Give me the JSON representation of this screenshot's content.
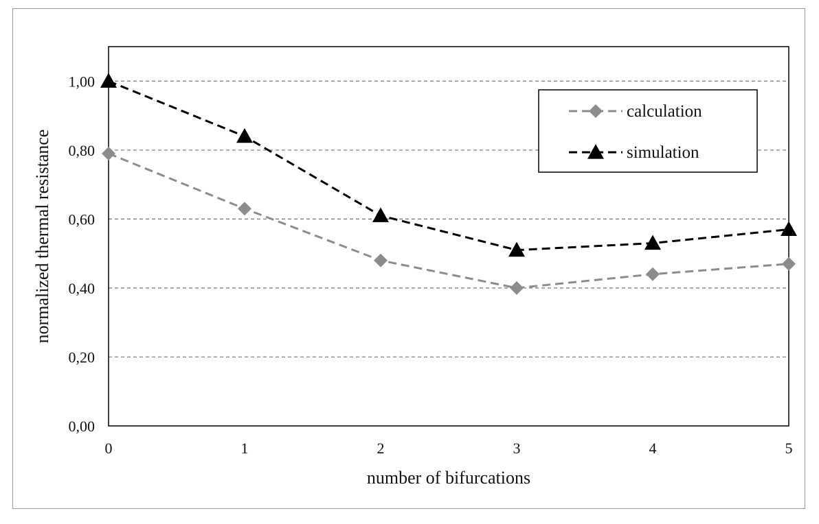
{
  "chart_data": {
    "type": "line",
    "x": [
      0,
      1,
      2,
      3,
      4,
      5
    ],
    "xlabel": "number of bifurcations",
    "ylabel": "normalized thermal resistance",
    "ylim": [
      0,
      1.1
    ],
    "yticks": [
      0,
      0.2,
      0.4,
      0.6,
      0.8,
      1.0
    ],
    "ytick_labels": [
      "0,00",
      "0,20",
      "0,40",
      "0,60",
      "0,80",
      "1,00"
    ],
    "xtick_labels": [
      "0",
      "1",
      "2",
      "3",
      "4",
      "5"
    ],
    "grid": "horizontal dashed",
    "legend_position": "top-right",
    "series": [
      {
        "name": "calculation",
        "values": [
          0.79,
          0.63,
          0.48,
          0.4,
          0.44,
          0.47
        ],
        "color": "#8c8c8c",
        "marker": "diamond",
        "line": "dashed"
      },
      {
        "name": "simulation",
        "values": [
          1.0,
          0.84,
          0.61,
          0.51,
          0.53,
          0.57
        ],
        "color": "#000000",
        "marker": "triangle",
        "line": "dashed"
      }
    ]
  }
}
